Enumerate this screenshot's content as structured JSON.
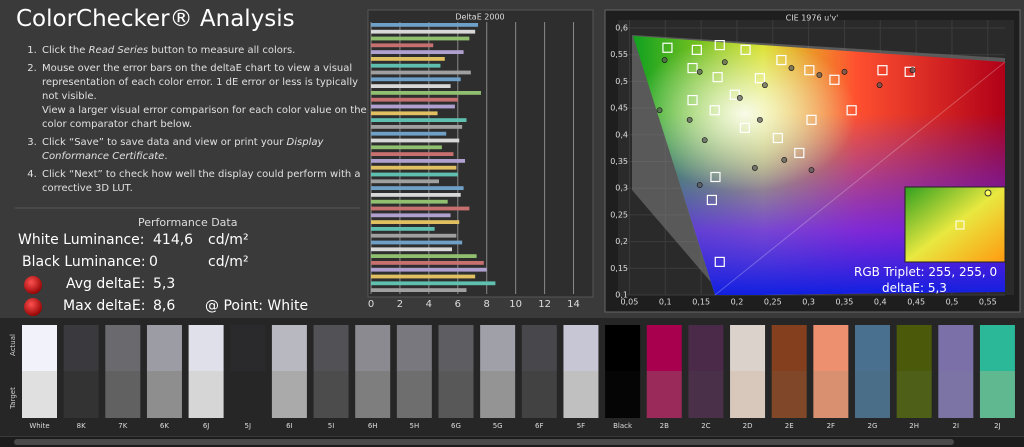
{
  "title": "ColorChecker® Analysis",
  "instructions": [
    [
      "Click the ",
      "Read Series",
      " button to measure all colors."
    ],
    [
      "Mouse over the error bars on the deltaE chart to view a visual representation of each color error. 1 dE error or less is typically not visible.",
      "View a larger visual error comparison for each color value on the color comparator chart below."
    ],
    [
      "Click “Save” to save data and view or print your ",
      "Display Conformance Certificate",
      "."
    ],
    [
      "Click “Next” to check how well the display could perform with a corrective 3D LUT."
    ]
  ],
  "performance": {
    "title": "Performance Data",
    "white": {
      "label": "White Luminance:",
      "value": "414,6",
      "unit": "cd/m²"
    },
    "black": {
      "label": "Black Luminance:",
      "value": "0",
      "unit": "cd/m²"
    },
    "avg": {
      "label": "Avg deltaE:",
      "value": "5,3"
    },
    "max": {
      "label": "Max deltaE:",
      "value": "8,6",
      "point": "@ Point: White"
    }
  },
  "chart_data": [
    {
      "type": "hbar",
      "title": "DeltaE 2000",
      "values": [
        7.4,
        7.2,
        6.8,
        4.3,
        6.4,
        5.1,
        4.8,
        6.9,
        6.2,
        5.5,
        7.6,
        6.0,
        5.8,
        4.6,
        6.6,
        6.3,
        5.2,
        6.1,
        4.9,
        5.7,
        6.5,
        5.9,
        6.0,
        4.7,
        6.4,
        6.2,
        5.3,
        6.8,
        5.5,
        6.1,
        4.4,
        5.9,
        6.3,
        5.6,
        7.3,
        7.8,
        8.0,
        7.2,
        8.6,
        6.6
      ],
      "colors": [
        "#6fa0c8",
        "#d8d8d8",
        "#8fbf6f",
        "#c87070",
        "#b0a0d0",
        "#e0c060",
        "#60c0b0",
        "#a0a0a0"
      ],
      "xlim": [
        0,
        15
      ],
      "xticks": [
        0,
        2,
        4,
        6,
        8,
        10,
        12,
        14
      ],
      "grid": true
    },
    {
      "type": "scatter",
      "title": "CIE 1976 u'v'",
      "xlim": [
        0.034,
        0.574
      ],
      "ylim": [
        0.1,
        0.615
      ],
      "xticks": [
        {
          "value": 0.05,
          "label": "0,05"
        },
        {
          "value": 0.1,
          "label": "0,1"
        },
        {
          "value": 0.15,
          "label": "0,15"
        },
        {
          "value": 0.2,
          "label": "0,2"
        },
        {
          "value": 0.25,
          "label": "0,25"
        },
        {
          "value": 0.3,
          "label": "0,3"
        },
        {
          "value": 0.35,
          "label": "0,35"
        },
        {
          "value": 0.4,
          "label": "0,4"
        },
        {
          "value": 0.45,
          "label": "0,45"
        },
        {
          "value": 0.5,
          "label": "0,5"
        },
        {
          "value": 0.55,
          "label": "0,55"
        }
      ],
      "yticks": [
        {
          "value": 0.1,
          "label": "0,1"
        },
        {
          "value": 0.15,
          "label": "0,15"
        },
        {
          "value": 0.2,
          "label": "0,2"
        },
        {
          "value": 0.25,
          "label": "0,25"
        },
        {
          "value": 0.3,
          "label": "0,3"
        },
        {
          "value": 0.35,
          "label": "0,35"
        },
        {
          "value": 0.4,
          "label": "0,4"
        },
        {
          "value": 0.45,
          "label": "0,45"
        },
        {
          "value": 0.5,
          "label": "0,5"
        },
        {
          "value": 0.55,
          "label": "0,55"
        },
        {
          "value": 0.6,
          "label": "0,6"
        }
      ],
      "series": [
        {
          "marker": "square",
          "color": "#ffffff",
          "x": [
            0.103,
            0.144,
            0.176,
            0.212,
            0.138,
            0.173,
            0.197,
            0.232,
            0.262,
            0.301,
            0.336,
            0.403,
            0.441,
            0.138,
            0.169,
            0.211,
            0.257,
            0.287,
            0.17,
            0.165,
            0.176,
            0.36,
            0.304
          ],
          "y": [
            0.563,
            0.559,
            0.568,
            0.559,
            0.525,
            0.508,
            0.475,
            0.506,
            0.54,
            0.521,
            0.503,
            0.521,
            0.518,
            0.465,
            0.446,
            0.413,
            0.394,
            0.366,
            0.321,
            0.278,
            0.162,
            0.446,
            0.428
          ]
        },
        {
          "marker": "circle",
          "color": "#555555",
          "x": [
            0.099,
            0.148,
            0.183,
            0.204,
            0.239,
            0.276,
            0.315,
            0.399,
            0.445,
            0.134,
            0.155,
            0.232,
            0.266,
            0.148,
            0.225,
            0.092,
            0.35,
            0.304
          ],
          "y": [
            0.54,
            0.518,
            0.536,
            0.469,
            0.493,
            0.525,
            0.512,
            0.493,
            0.521,
            0.428,
            0.39,
            0.428,
            0.353,
            0.306,
            0.338,
            0.446,
            0.518,
            0.334
          ]
        }
      ],
      "inset": {
        "triplet": "RGB Triplet: 255, 255, 0",
        "delta": "deltaE: 5,3"
      }
    }
  ],
  "comparator": {
    "actual_label": "Actual",
    "target_label": "Target",
    "patches": [
      {
        "label": "White",
        "actual": "#f2f2fa",
        "target": "#e0e0e0"
      },
      {
        "label": "8K",
        "actual": "#3a3a3e",
        "target": "#333333"
      },
      {
        "label": "7K",
        "actual": "#6a6a6e",
        "target": "#616161"
      },
      {
        "label": "6K",
        "actual": "#9c9ca4",
        "target": "#8e8e8e"
      },
      {
        "label": "6J",
        "actual": "#e0e0ea",
        "target": "#d6d6d6"
      },
      {
        "label": "5J",
        "actual": "#2a2a2c",
        "target": "#262626"
      },
      {
        "label": "6I",
        "actual": "#b8b8c0",
        "target": "#aaaaaa"
      },
      {
        "label": "5I",
        "actual": "#525256",
        "target": "#4c4c4c"
      },
      {
        "label": "6H",
        "actual": "#8a8a90",
        "target": "#7e7e7e"
      },
      {
        "label": "5H",
        "actual": "#78787e",
        "target": "#6e6e6e"
      },
      {
        "label": "6G",
        "actual": "#5e5e62",
        "target": "#585858"
      },
      {
        "label": "5G",
        "actual": "#a0a0a8",
        "target": "#949494"
      },
      {
        "label": "6F",
        "actual": "#48484c",
        "target": "#424242"
      },
      {
        "label": "5F",
        "actual": "#c6c6d4",
        "target": "#c0c0c0"
      },
      {
        "label": "Black",
        "actual": "#000000",
        "target": "#050505"
      },
      {
        "label": "2B",
        "actual": "#a8004e",
        "target": "#9a2a5a"
      },
      {
        "label": "2C",
        "actual": "#4a2a48",
        "target": "#4a3048"
      },
      {
        "label": "2D",
        "actual": "#dcd2cc",
        "target": "#d8c8bc"
      },
      {
        "label": "2E",
        "actual": "#84401e",
        "target": "#804828"
      },
      {
        "label": "2F",
        "actual": "#ec9070",
        "target": "#d89070"
      },
      {
        "label": "2G",
        "actual": "#4a7090",
        "target": "#4a6e88"
      },
      {
        "label": "2H",
        "actual": "#4a5a0a",
        "target": "#4e6018"
      },
      {
        "label": "2I",
        "actual": "#7c70a8",
        "target": "#7c74a4"
      },
      {
        "label": "2J",
        "actual": "#2ab898",
        "target": "#60b890"
      }
    ]
  }
}
